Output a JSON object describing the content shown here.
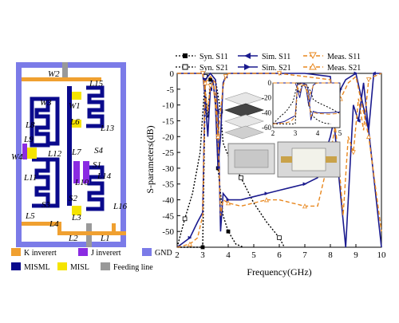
{
  "layout_panel": {
    "dimension_labels": {
      "W2": "W2",
      "L15": "L15",
      "W3": "W3",
      "W1": "W1",
      "L8": "L8",
      "L6": "L6",
      "L13": "L13",
      "L9": "L9",
      "L7": "L7",
      "S4": "S4",
      "W4": "W4",
      "L12": "L12",
      "S1": "S1",
      "L11": "L11",
      "L10": "L10",
      "L14": "L14",
      "S3": "S3",
      "S2": "S2",
      "L5": "L5",
      "L3": "L3",
      "L16": "L16",
      "L4": "L4",
      "L2": "L2",
      "L1": "L1"
    },
    "legend": [
      {
        "label": "K inverert",
        "color": "#f0a030"
      },
      {
        "label": "J inverert",
        "color": "#8a2be2"
      },
      {
        "label": "GND",
        "color": "#7b7be8"
      },
      {
        "label": "MISML",
        "color": "#0a0a8c"
      },
      {
        "label": "MISL",
        "color": "#f5e400"
      },
      {
        "label": "Feeding line",
        "color": "#999999"
      }
    ]
  },
  "chart_data": {
    "type": "line",
    "xlabel": "Frequency(GHz)",
    "ylabel": "S-parameters(dB)",
    "xlim": [
      2,
      10
    ],
    "ylim": [
      -55,
      0
    ],
    "xticks": [
      2,
      3,
      4,
      5,
      6,
      7,
      8,
      9,
      10
    ],
    "yticks": [
      0,
      -5,
      -10,
      -15,
      -20,
      -25,
      -30,
      -35,
      -40,
      -45,
      -50
    ],
    "grid": false,
    "legend_position": "top",
    "series": [
      {
        "name": "Syn. S11",
        "color": "#000000",
        "style": "dotted",
        "marker": "square-filled",
        "x": [
          2.0,
          3.0,
          3.1,
          3.2,
          3.3,
          3.4,
          3.5,
          3.6,
          3.7,
          3.8,
          4.0,
          4.3,
          4.6
        ],
        "y": [
          -55,
          -55,
          -5,
          -14,
          -2,
          -3,
          -8,
          -30,
          -38,
          -45,
          -50,
          -54,
          -55
        ]
      },
      {
        "name": "Syn. S21",
        "color": "#000000",
        "style": "dotted",
        "marker": "square-open",
        "x": [
          2.0,
          2.3,
          2.6,
          2.9,
          3.1,
          3.3,
          3.5,
          3.7,
          3.8,
          4.0,
          4.5,
          5.0,
          5.5,
          6.0,
          6.2
        ],
        "y": [
          -55,
          -46,
          -38,
          -25,
          -1,
          0,
          -2,
          -12,
          -22,
          -26,
          -33,
          -41,
          -47,
          -52,
          -55
        ]
      },
      {
        "name": "Sim. S11",
        "color": "#1a1a8e",
        "style": "solid",
        "marker": "triangle-left",
        "x": [
          2.0,
          3.0,
          3.1,
          3.2,
          3.3,
          3.4,
          3.5,
          3.6,
          3.7,
          3.8,
          3.9,
          4.0,
          5.0,
          6.0,
          7.0,
          8.0,
          8.3,
          8.6,
          8.9,
          9.1,
          9.3,
          9.5,
          9.7,
          10.0
        ],
        "y": [
          0,
          0,
          -8,
          -20,
          -5,
          -2,
          -10,
          -30,
          -20,
          -3,
          -1,
          0,
          0,
          0,
          0,
          -1,
          -30,
          -55,
          -10,
          -15,
          -3,
          -18,
          0,
          0
        ]
      },
      {
        "name": "Sim. S21",
        "color": "#1a1a8e",
        "style": "solid",
        "marker": "triangle-right",
        "x": [
          2.0,
          2.5,
          2.8,
          3.0,
          3.1,
          3.3,
          3.5,
          3.6,
          3.7,
          3.8,
          4.0,
          4.5,
          5.0,
          5.5,
          6.0,
          6.5,
          7.0,
          7.5,
          8.0,
          8.4,
          8.6,
          8.8,
          9.0,
          9.5,
          10.0
        ],
        "y": [
          -55,
          -52,
          -47,
          -44,
          -2,
          0,
          -2,
          -12,
          -50,
          -38,
          -40,
          -40,
          -39,
          -38,
          -37,
          -36,
          -35,
          -33,
          -20,
          -5,
          -2,
          -1,
          0,
          -18,
          -55
        ]
      },
      {
        "name": "Meas. S11",
        "color": "#e8871e",
        "style": "dashed",
        "marker": "triangle-down-open",
        "x": [
          2.0,
          3.0,
          3.1,
          3.2,
          3.3,
          3.4,
          3.5,
          3.6,
          3.7,
          3.8,
          3.9,
          4.0,
          5.0,
          6.0,
          7.0,
          8.0,
          8.3,
          8.5,
          8.7,
          8.9,
          9.1,
          9.3,
          9.5,
          9.7,
          10.0
        ],
        "y": [
          0,
          0,
          -6,
          -12,
          -4,
          -3,
          -10,
          -20,
          -12,
          -4,
          -1,
          0,
          0,
          0,
          -1,
          -2,
          -25,
          -45,
          -20,
          -25,
          -8,
          -18,
          -2,
          -1,
          0
        ]
      },
      {
        "name": "Meas. S21",
        "color": "#e8871e",
        "style": "dashed",
        "marker": "triangle-up-open",
        "x": [
          2.0,
          2.5,
          2.8,
          3.0,
          3.1,
          3.3,
          3.5,
          3.6,
          3.7,
          3.8,
          4.0,
          4.5,
          5.0,
          5.5,
          6.0,
          6.5,
          7.0,
          7.5,
          8.0,
          8.4,
          8.7,
          9.0,
          9.5,
          10.0
        ],
        "y": [
          -55,
          -54,
          -52,
          -45,
          -3,
          -1,
          -3,
          -20,
          -45,
          -40,
          -41,
          -42,
          -41,
          -40,
          -40,
          -41,
          -42,
          -42,
          -25,
          -8,
          -3,
          -1,
          -20,
          -50
        ]
      }
    ],
    "inset": {
      "xlim": [
        2,
        5
      ],
      "ylim": [
        -60,
        0
      ],
      "xticks": [
        2,
        3,
        4,
        5
      ],
      "yticks": [
        0,
        -20,
        -40,
        -60
      ]
    }
  }
}
